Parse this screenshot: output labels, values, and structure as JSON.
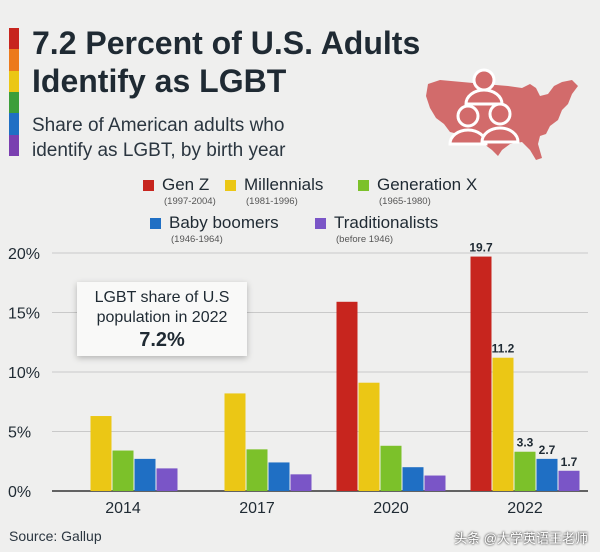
{
  "title_line1": "7.2 Percent of U.S. Adults",
  "title_line2": "Identify as LGBT",
  "subtitle_line1": "Share of American adults who",
  "subtitle_line2": "identify as LGBT, by birth year",
  "callout": {
    "line1": "LGBT share of U.S",
    "line2": "population in 2022",
    "value": "7.2%"
  },
  "source": "Source: Gallup",
  "watermark": "头条 @大学英语王老师",
  "colors": {
    "gen_z": "#c7251e",
    "millennials": "#ebc715",
    "gen_x": "#7cc12a",
    "boomers": "#1f6fc4",
    "traditionalists": "#7a55c7",
    "text": "#1f2a33"
  },
  "legend": [
    {
      "label": "Gen Z",
      "range": "(1997-2004)",
      "color": "#c7251e"
    },
    {
      "label": "Millennials",
      "range": "(1981-1996)",
      "color": "#ebc715"
    },
    {
      "label": "Generation X",
      "range": "(1965-1980)",
      "color": "#7cc12a"
    },
    {
      "label": "Baby boomers",
      "range": "(1946-1964)",
      "color": "#1f6fc4"
    },
    {
      "label": "Traditionalists",
      "range": "(before 1946)",
      "color": "#7a55c7"
    }
  ],
  "chart_data": {
    "type": "bar",
    "title": "7.2 Percent of U.S. Adults Identify as LGBT",
    "subtitle": "Share of American adults who identify as LGBT, by birth year",
    "categories": [
      "2014",
      "2017",
      "2020",
      "2022"
    ],
    "ylim": [
      0,
      20
    ],
    "yticks": [
      "0%",
      "5%",
      "10%",
      "15%",
      "20%"
    ],
    "grid": true,
    "series": [
      {
        "name": "Gen Z",
        "values": [
          null,
          null,
          15.9,
          19.7
        ],
        "labels": [
          null,
          null,
          null,
          "19.7"
        ]
      },
      {
        "name": "Millennials",
        "values": [
          6.3,
          8.2,
          9.1,
          11.2
        ],
        "labels": [
          null,
          null,
          null,
          "11.2"
        ]
      },
      {
        "name": "Generation X",
        "values": [
          3.4,
          3.5,
          3.8,
          3.3
        ],
        "labels": [
          null,
          null,
          null,
          "3.3"
        ]
      },
      {
        "name": "Baby boomers",
        "values": [
          2.7,
          2.4,
          2.0,
          2.7
        ],
        "labels": [
          null,
          null,
          null,
          "2.7"
        ]
      },
      {
        "name": "Traditionalists",
        "values": [
          1.9,
          1.4,
          1.3,
          1.7
        ],
        "labels": [
          null,
          null,
          null,
          "1.7"
        ]
      }
    ]
  }
}
